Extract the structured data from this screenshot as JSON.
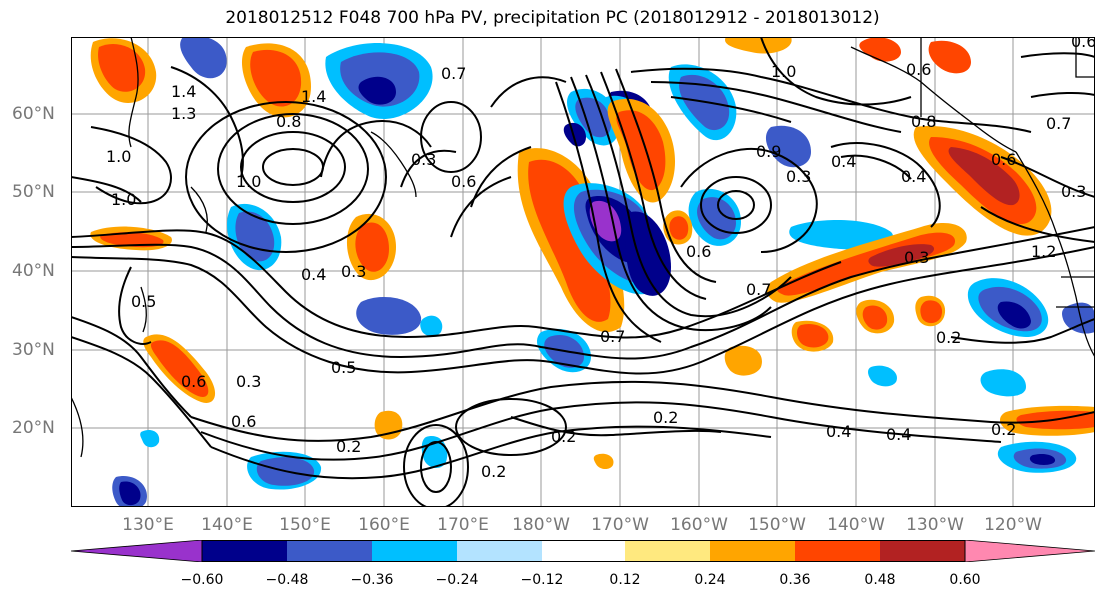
{
  "title": "2018012512 F048 700 hPa PV, precipitation PC (2018012912 - 2018013012)",
  "lat_labels": [
    "60°N",
    "50°N",
    "40°N",
    "30°N",
    "20°N"
  ],
  "lon_labels": [
    "130°E",
    "140°E",
    "150°E",
    "160°E",
    "170°E",
    "180°W",
    "170°W",
    "160°W",
    "150°W",
    "140°W",
    "130°W",
    "120°W"
  ],
  "colorbar": {
    "ticks": [
      "−0.60",
      "−0.48",
      "−0.36",
      "−0.24",
      "−0.12",
      "0.12",
      "0.24",
      "0.36",
      "0.48",
      "0.60"
    ],
    "colors": [
      "#9932cc",
      "#00008b",
      "#3c5ac8",
      "#00bfff",
      "#b3e3ff",
      "#ffffff",
      "#ffe97f",
      "#ffa500",
      "#ff4500",
      "#b22222",
      "#ff88b0"
    ]
  },
  "contour_labels": [
    "0.7",
    "1.0",
    "1.4",
    "1.3",
    "0.6",
    "0.8",
    "0.3",
    "0.4",
    "0.5",
    "0.2",
    "0.9",
    "1.2"
  ],
  "shading_colors": {
    "pos_light": "#ffe97f",
    "pos_mid": "#ffa500",
    "pos_strong": "#ff4500",
    "pos_max": "#b22222",
    "neg_light": "#b3e3ff",
    "neg_mid": "#00bfff",
    "neg_strong": "#3c5ac8",
    "neg_dark": "#00008b",
    "neg_max": "#9932cc"
  }
}
